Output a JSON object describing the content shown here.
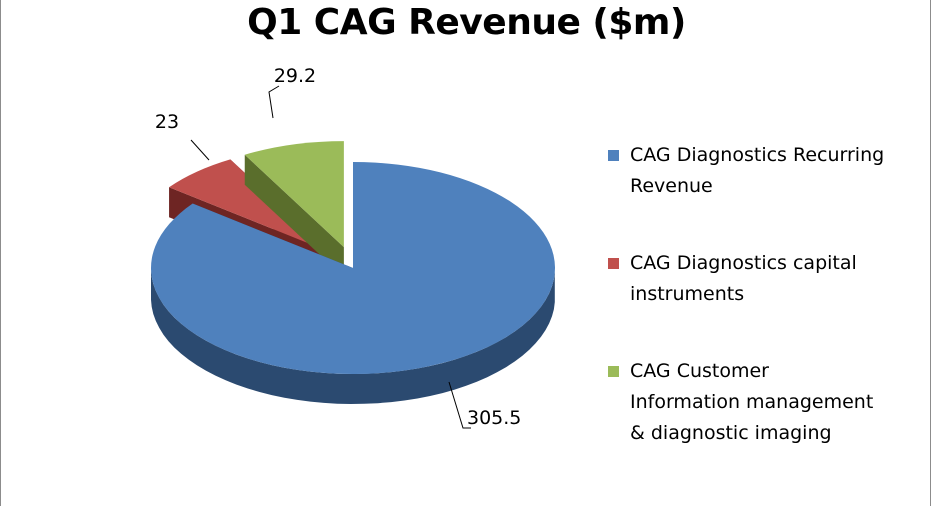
{
  "chart_data": {
    "type": "pie",
    "title": "Q1 CAG Revenue ($m)",
    "slices": [
      {
        "label": "CAG Diagnostics  Recurring Revenue",
        "value": 305.5,
        "value_label": "305.5",
        "color": "#4f81bd",
        "dark": "#2b4a70"
      },
      {
        "label": "CAG Diagnostics  capital instruments",
        "value": 23,
        "value_label": "23",
        "color": "#c0504d",
        "dark": "#6e2523"
      },
      {
        "label": "CAG Customer Information management & diagnostic imaging",
        "value": 29.2,
        "value_label": "29.2",
        "color": "#9bbb59",
        "dark": "#5a6e2c"
      }
    ],
    "legend_position": "right",
    "style": "3d-exploded"
  },
  "legend": {
    "items": [
      {
        "line1": "CAG Diagnostics  Recurring",
        "line2": "Revenue"
      },
      {
        "line1": "CAG Diagnostics  capital",
        "line2": "instruments"
      },
      {
        "line1": "CAG Customer",
        "line2": "Information management",
        "line3": "& diagnostic imaging"
      }
    ]
  }
}
